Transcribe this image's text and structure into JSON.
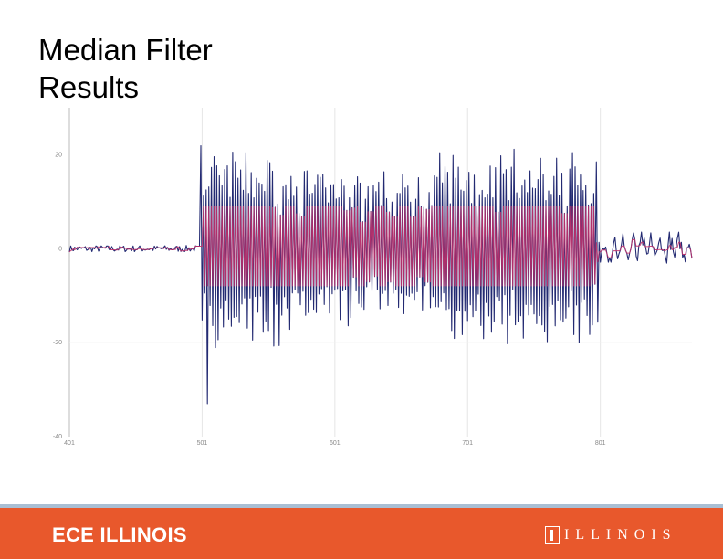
{
  "slide": {
    "title_line1": "Median Filter",
    "title_line2": "Results"
  },
  "chart_data": {
    "type": "line",
    "title": "",
    "xlabel": "",
    "ylabel": "",
    "xlim": [
      401,
      870
    ],
    "ylim": [
      -40,
      30
    ],
    "x_ticks": [
      401,
      501,
      601,
      701,
      801
    ],
    "x_tick_labels": [
      "401",
      "501",
      "601",
      "701",
      "801"
    ],
    "y_ticks": [
      20,
      0,
      -20,
      -40
    ],
    "y_tick_labels": [
      "20",
      "0",
      "-20",
      "-40"
    ],
    "grid": "vertical",
    "legend": "none",
    "series": [
      {
        "style": "raw",
        "color": "#232a72",
        "segments": [
          {
            "x": [
              401,
              500
            ],
            "amplitude": 0.7
          },
          {
            "x": [
              500,
              504
            ],
            "amplitude": 22
          },
          {
            "x": [
              504,
              560
            ],
            "amplitude": 20
          },
          {
            "x": [
              560,
              620
            ],
            "amplitude": 16
          },
          {
            "x": [
              620,
              680
            ],
            "amplitude": 15
          },
          {
            "x": [
              680,
              800
            ],
            "amplitude": 20
          },
          {
            "x": [
              800,
              870
            ],
            "amplitude": 2
          }
        ],
        "spike_min": -33,
        "spike_min_x": 505
      },
      {
        "style": "median filtered",
        "color": "#c0306a",
        "range": [
          -8,
          9
        ]
      }
    ]
  },
  "footer": {
    "logo": "ECE ILLINOIS",
    "wordmark": "ILLINOIS",
    "color": "#e8582c",
    "rule_color": "#a9bfd4"
  }
}
